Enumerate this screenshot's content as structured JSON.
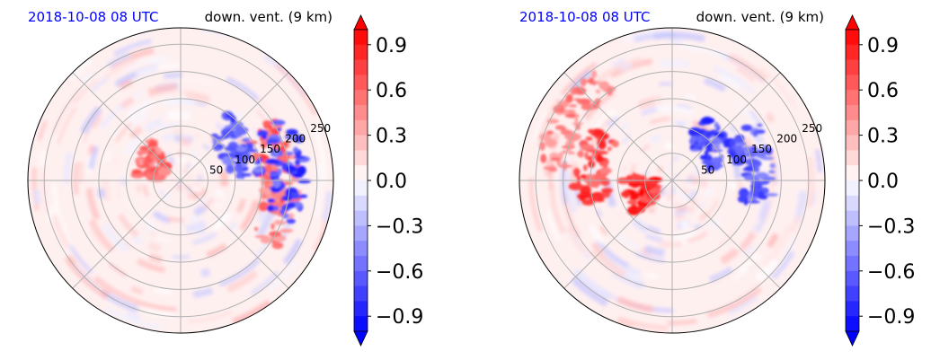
{
  "chart_data": [
    {
      "type": "polar-contourf",
      "title_left": "2018-10-08 08 UTC",
      "title_right": "down. vent. (9 km)",
      "radial_ticks": [
        "50",
        "100",
        "150",
        "200",
        "250"
      ],
      "radial_values": [
        50,
        100,
        150,
        200,
        250
      ],
      "rmax": 280,
      "angular_grid_deg": [
        0,
        45,
        90,
        135,
        180,
        225,
        270,
        315
      ],
      "grid": true,
      "colormap": "bwr",
      "colorbar": {
        "ticks": [
          "0.9",
          "0.6",
          "0.3",
          "0.0",
          "−0.3",
          "−0.6",
          "−0.9"
        ],
        "tick_values": [
          0.9,
          0.6,
          0.3,
          0.0,
          -0.3,
          -0.6,
          -0.9
        ],
        "vmin": -1.0,
        "vmax": 1.0,
        "extend": "both"
      },
      "features": [
        {
          "angle_deg": 8,
          "radius": 175,
          "value": 0.8,
          "note": "positive cluster east"
        },
        {
          "angle_deg": -10,
          "radius": 185,
          "value": 0.6,
          "note": "positive cluster east"
        },
        {
          "angle_deg": 150,
          "radius": 60,
          "value": 0.7,
          "note": "positive patch west"
        },
        {
          "angle_deg": 30,
          "radius": 120,
          "value": -0.8,
          "note": "negative band NE"
        },
        {
          "angle_deg": 5,
          "radius": 200,
          "value": -0.9,
          "note": "negative band E"
        }
      ]
    },
    {
      "type": "polar-contourf",
      "title_left": "2018-10-08 08 UTC",
      "title_right": "down. vent. (9 km)",
      "radial_ticks": [
        "50",
        "100",
        "150",
        "200",
        "250"
      ],
      "radial_values": [
        50,
        100,
        150,
        200,
        250
      ],
      "rmax": 280,
      "angular_grid_deg": [
        0,
        45,
        90,
        135,
        180,
        225,
        270,
        315
      ],
      "grid": true,
      "colormap": "bwr",
      "colorbar": {
        "ticks": [
          "0.9",
          "0.6",
          "0.3",
          "0.0",
          "−0.3",
          "−0.6",
          "−0.9"
        ],
        "tick_values": [
          0.9,
          0.6,
          0.3,
          0.0,
          -0.3,
          -0.6,
          -0.9
        ],
        "vmin": -1.0,
        "vmax": 1.0,
        "extend": "both"
      },
      "features": [
        {
          "angle_deg": 200,
          "radius": 60,
          "value": 1.0,
          "note": "strong positive core SW"
        },
        {
          "angle_deg": 170,
          "radius": 150,
          "value": 0.9,
          "note": "positive rainband W"
        },
        {
          "angle_deg": 150,
          "radius": 220,
          "value": 0.6,
          "note": "outer positive band W"
        },
        {
          "angle_deg": 40,
          "radius": 100,
          "value": -0.9,
          "note": "negative band NE"
        },
        {
          "angle_deg": 10,
          "radius": 160,
          "value": -0.8,
          "note": "negative cells E"
        }
      ]
    }
  ],
  "colors": {
    "title_left": "#0000ff",
    "title_right": "#000000",
    "negative": "#0000ff",
    "zero": "#ffffff",
    "positive": "#ff0000",
    "grid": "#b0b0b0"
  }
}
